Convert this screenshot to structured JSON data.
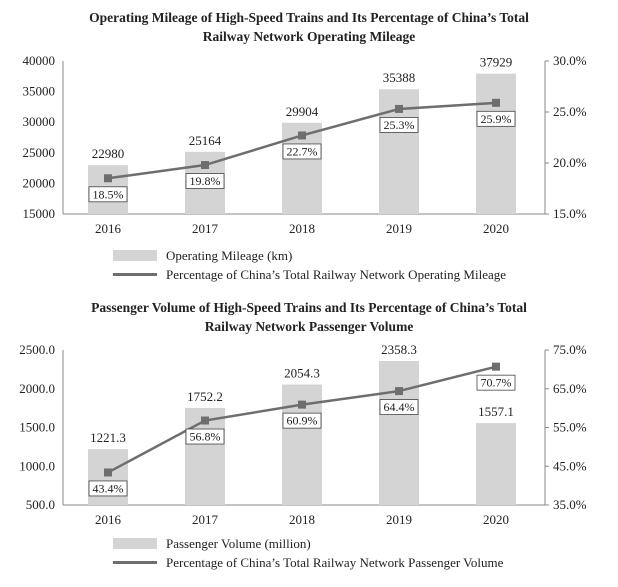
{
  "chart_data": [
    {
      "type": "bar+line",
      "title_line1": "Operating Mileage of High-Speed Trains and Its Percentage of China’s Total",
      "title_line2": "Railway Network Operating Mileage",
      "categories": [
        "2016",
        "2017",
        "2018",
        "2019",
        "2020"
      ],
      "series": [
        {
          "name": "Operating Mileage (km)",
          "type": "bar",
          "axis": "left",
          "values": [
            22980,
            25164,
            29904,
            35388,
            37929
          ],
          "labels": [
            "22980",
            "25164",
            "29904",
            "35388",
            "37929"
          ]
        },
        {
          "name": "Percentage of China’s Total Railway Network Operating Mileage",
          "type": "line",
          "axis": "right",
          "values": [
            18.5,
            19.8,
            22.7,
            25.3,
            25.9
          ],
          "labels": [
            "18.5%",
            "19.8%",
            "22.7%",
            "25.3%",
            "25.9%"
          ]
        }
      ],
      "ylim_left": [
        15000,
        40000
      ],
      "yticks_left": [
        "15000",
        "20000",
        "25000",
        "30000",
        "35000",
        "40000"
      ],
      "ylim_right": [
        15.0,
        30.0
      ],
      "yticks_right": [
        "15.0%",
        "20.0%",
        "25.0%",
        "30.0%"
      ],
      "legend_position": "bottom"
    },
    {
      "type": "bar+line",
      "title_line1": "Passenger Volume of High-Speed Trains and Its Percentage of China’s Total",
      "title_line2": "Railway Network Passenger Volume",
      "categories": [
        "2016",
        "2017",
        "2018",
        "2019",
        "2020"
      ],
      "series": [
        {
          "name": "Passenger Volume (million)",
          "type": "bar",
          "axis": "left",
          "values": [
            1221.3,
            1752.2,
            2054.3,
            2358.3,
            1557.1
          ],
          "labels": [
            "1221.3",
            "1752.2",
            "2054.3",
            "2358.3",
            "1557.1"
          ]
        },
        {
          "name": "Percentage of China’s Total Railway Network Passenger Volume",
          "type": "line",
          "axis": "right",
          "values": [
            43.4,
            56.8,
            60.9,
            64.4,
            70.7
          ],
          "labels": [
            "43.4%",
            "56.8%",
            "60.9%",
            "64.4%",
            "70.7%"
          ]
        }
      ],
      "ylim_left": [
        500,
        2500
      ],
      "yticks_left": [
        "500.0",
        "1000.0",
        "1500.0",
        "2000.0",
        "2500.0"
      ],
      "ylim_right": [
        35.0,
        75.0
      ],
      "yticks_right": [
        "35.0%",
        "45.0%",
        "55.0%",
        "65.0%",
        "75.0%"
      ],
      "legend_position": "bottom"
    }
  ],
  "colors": {
    "bar": "#d4d4d4",
    "line": "#6e6e6e",
    "marker": "#6e6e6e"
  }
}
